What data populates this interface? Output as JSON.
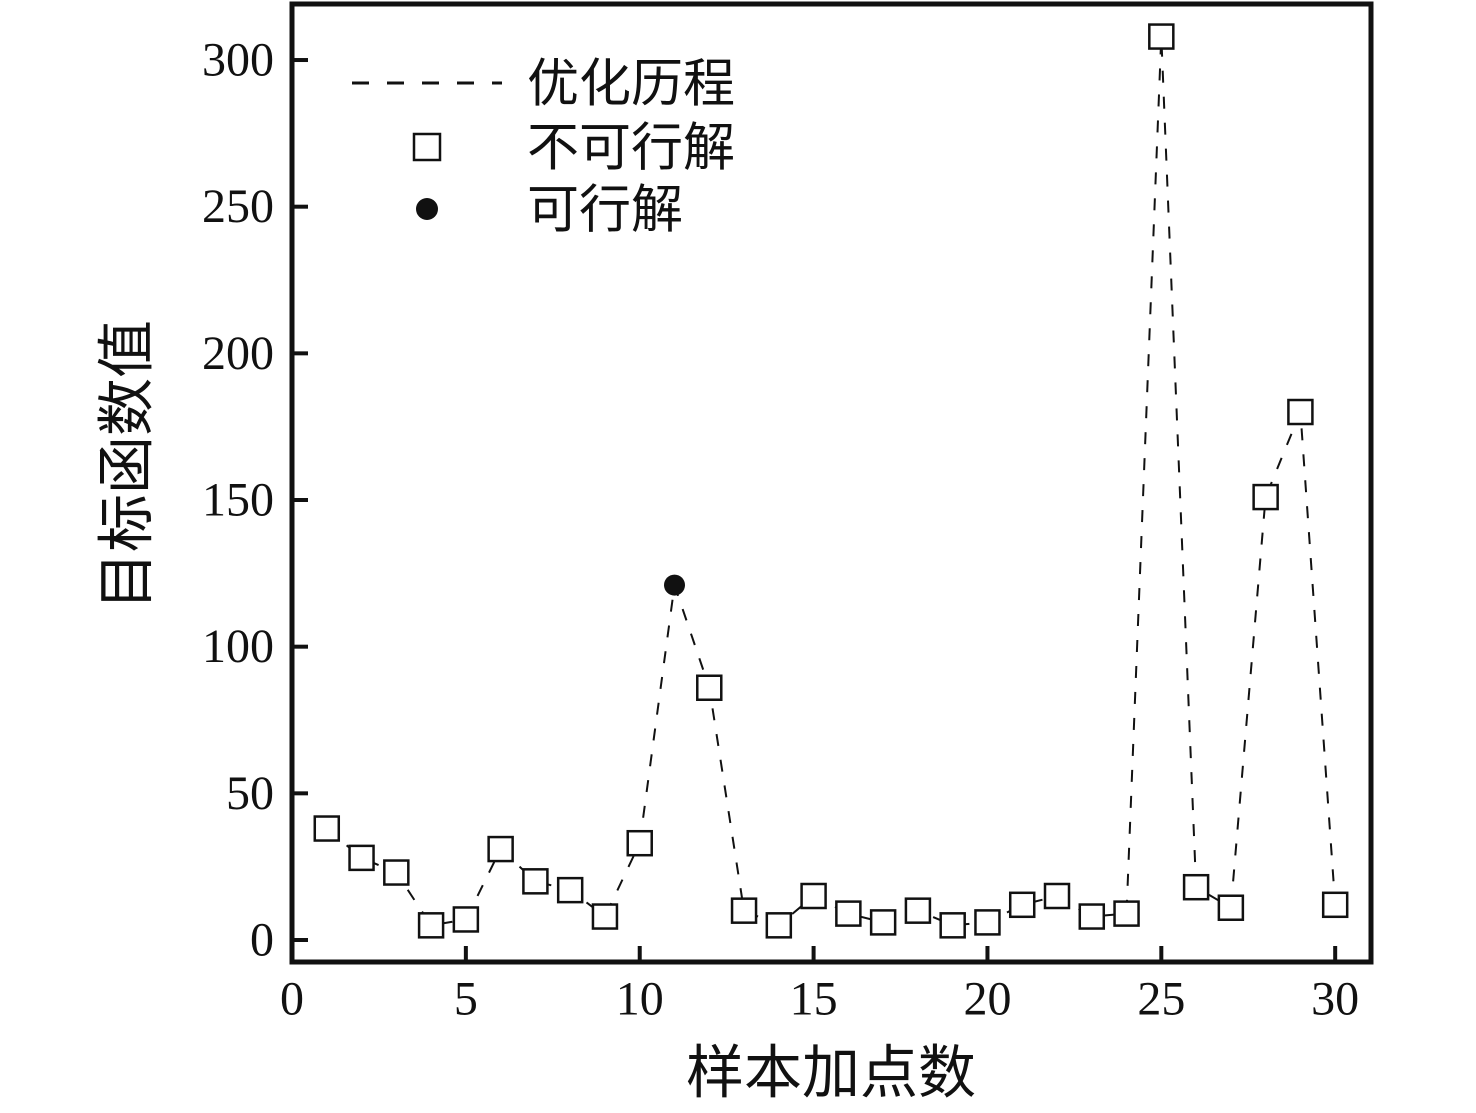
{
  "figure": {
    "background": "#ffffff",
    "ink_color": "#111111"
  },
  "chart_data": {
    "type": "line",
    "title": "",
    "xlabel": "样本加点数",
    "ylabel": "目标函数值",
    "xlim": [
      0,
      31.03
    ],
    "ylim": [
      -7.5,
      319.1
    ],
    "xticks": [
      0,
      5,
      10,
      15,
      20,
      25,
      30
    ],
    "yticks": [
      0,
      50,
      100,
      150,
      200,
      250,
      300
    ],
    "grid": false,
    "tick_direction": "in",
    "legend_position": "upper-left-inside",
    "legend": [
      {
        "label": "优化历程",
        "swatch": "dashed-line"
      },
      {
        "label": "不可行解",
        "swatch": "open-square"
      },
      {
        "label": "可行解",
        "swatch": "filled-circle"
      }
    ],
    "series": [
      {
        "name": "优化历程",
        "type": "line",
        "line_style": "dashed",
        "color": "#111111",
        "x": [
          1,
          2,
          3,
          4,
          5,
          6,
          7,
          8,
          9,
          10,
          11,
          12,
          13,
          14,
          15,
          16,
          17,
          18,
          19,
          20,
          21,
          22,
          23,
          24,
          25,
          26,
          27,
          28,
          29,
          30
        ],
        "y": [
          38,
          28,
          23,
          5,
          7,
          31,
          20,
          17,
          8,
          33,
          121,
          86,
          10,
          5,
          15,
          9,
          6,
          10,
          5,
          6,
          12,
          15,
          8,
          9,
          308,
          18,
          11,
          151,
          180,
          12
        ]
      },
      {
        "name": "不可行解",
        "type": "scatter",
        "marker": "open-square",
        "color": "#111111",
        "x": [
          1,
          2,
          3,
          4,
          5,
          6,
          7,
          8,
          9,
          10,
          12,
          13,
          14,
          15,
          16,
          17,
          18,
          19,
          20,
          21,
          22,
          23,
          24,
          25,
          26,
          27,
          28,
          29,
          30
        ],
        "y": [
          38,
          28,
          23,
          5,
          7,
          31,
          20,
          17,
          8,
          33,
          86,
          10,
          5,
          15,
          9,
          6,
          10,
          5,
          6,
          12,
          15,
          8,
          9,
          308,
          18,
          11,
          151,
          180,
          12
        ]
      },
      {
        "name": "可行解",
        "type": "scatter",
        "marker": "filled-circle",
        "color": "#111111",
        "x": [
          11
        ],
        "y": [
          121
        ]
      }
    ]
  }
}
